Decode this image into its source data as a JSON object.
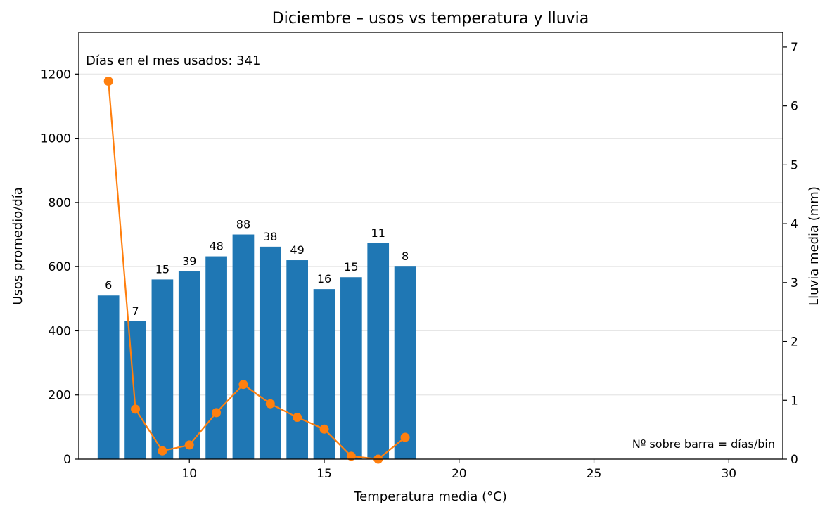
{
  "chart_data": {
    "type": "bar",
    "title": "Diciembre – usos vs temperatura y lluvia",
    "xlabel": "Temperatura media (°C)",
    "ylabel": "Usos promedio/día",
    "y2label": "Lluvia media (mm)",
    "xlim": [
      5.9,
      32.0
    ],
    "ylim": [
      0,
      1330
    ],
    "y2lim": [
      0,
      7.25
    ],
    "xticks": [
      10,
      15,
      20,
      25,
      30
    ],
    "yticks": [
      0,
      200,
      400,
      600,
      800,
      1000,
      1200
    ],
    "y2ticks": [
      0,
      1,
      2,
      3,
      4,
      5,
      6,
      7
    ],
    "grid": "horizontal",
    "annotation_top": "Días en el mes usados: 341",
    "annotation_bottom": "Nº sobre barra = días/bin",
    "bar_color": "#1f77b4",
    "line_color": "#ff7f0e",
    "x": [
      7,
      8,
      9,
      10,
      11,
      12,
      13,
      14,
      15,
      16,
      17,
      18
    ],
    "bars": {
      "values": [
        510,
        430,
        560,
        585,
        632,
        700,
        662,
        620,
        530,
        567,
        673,
        600
      ],
      "labels": [
        "6",
        "7",
        "15",
        "39",
        "48",
        "88",
        "38",
        "49",
        "16",
        "15",
        "11",
        "8"
      ]
    },
    "line": {
      "axis": "right",
      "values": [
        6.42,
        0.85,
        0.14,
        0.24,
        0.79,
        1.27,
        0.94,
        0.71,
        0.51,
        0.05,
        0.0,
        0.37
      ]
    }
  }
}
